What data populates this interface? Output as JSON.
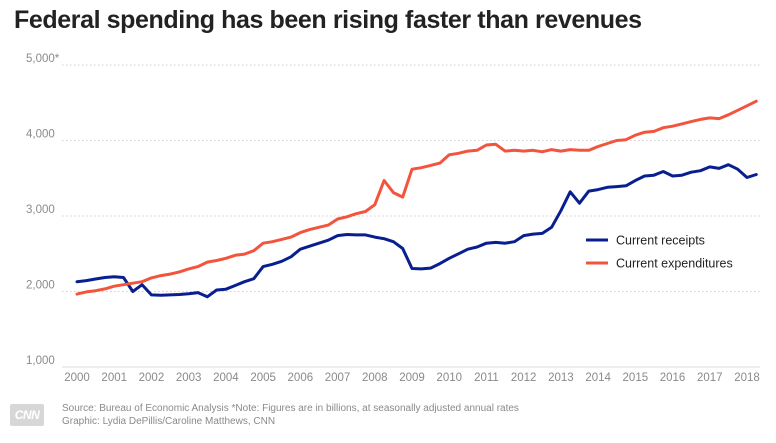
{
  "chart_data": {
    "type": "line",
    "title": "Federal spending has been rising faster than revenues",
    "xlabel": "",
    "ylabel": "",
    "xlim": [
      2000,
      2018.2
    ],
    "ylim": [
      1000,
      5000
    ],
    "x_ticks": [
      "2000",
      "2001",
      "2002",
      "2003",
      "2004",
      "2005",
      "2006",
      "2007",
      "2008",
      "2009",
      "2010",
      "2011",
      "2012",
      "2013",
      "2014",
      "2015",
      "2016",
      "2017",
      "2018"
    ],
    "y_ticks": [
      {
        "value": 1000,
        "label": "1,000"
      },
      {
        "value": 2000,
        "label": "2,000"
      },
      {
        "value": 3000,
        "label": "3,000"
      },
      {
        "value": 4000,
        "label": "4,000"
      },
      {
        "value": 5000,
        "label": "5,000*"
      }
    ],
    "grid": true,
    "legend_position": "right",
    "series": [
      {
        "name": "Current receipts",
        "color": "#0a1f8f",
        "points": [
          [
            2000.0,
            2130
          ],
          [
            2000.25,
            2145
          ],
          [
            2000.5,
            2165
          ],
          [
            2000.75,
            2185
          ],
          [
            2001.0,
            2195
          ],
          [
            2001.25,
            2185
          ],
          [
            2001.5,
            2000
          ],
          [
            2001.75,
            2090
          ],
          [
            2002.0,
            1955
          ],
          [
            2002.25,
            1950
          ],
          [
            2002.5,
            1955
          ],
          [
            2002.75,
            1960
          ],
          [
            2003.0,
            1970
          ],
          [
            2003.25,
            1985
          ],
          [
            2003.5,
            1930
          ],
          [
            2003.75,
            2020
          ],
          [
            2004.0,
            2030
          ],
          [
            2004.25,
            2080
          ],
          [
            2004.5,
            2130
          ],
          [
            2004.75,
            2170
          ],
          [
            2005.0,
            2330
          ],
          [
            2005.25,
            2360
          ],
          [
            2005.5,
            2400
          ],
          [
            2005.75,
            2460
          ],
          [
            2006.0,
            2560
          ],
          [
            2006.25,
            2600
          ],
          [
            2006.5,
            2640
          ],
          [
            2006.75,
            2680
          ],
          [
            2007.0,
            2740
          ],
          [
            2007.25,
            2755
          ],
          [
            2007.5,
            2750
          ],
          [
            2007.75,
            2750
          ],
          [
            2008.0,
            2720
          ],
          [
            2008.25,
            2700
          ],
          [
            2008.5,
            2660
          ],
          [
            2008.75,
            2570
          ],
          [
            2009.0,
            2305
          ],
          [
            2009.25,
            2300
          ],
          [
            2009.5,
            2310
          ],
          [
            2009.75,
            2370
          ],
          [
            2010.0,
            2440
          ],
          [
            2010.25,
            2500
          ],
          [
            2010.5,
            2560
          ],
          [
            2010.75,
            2590
          ],
          [
            2011.0,
            2640
          ],
          [
            2011.25,
            2650
          ],
          [
            2011.5,
            2640
          ],
          [
            2011.75,
            2660
          ],
          [
            2012.0,
            2740
          ],
          [
            2012.25,
            2760
          ],
          [
            2012.5,
            2770
          ],
          [
            2012.75,
            2850
          ],
          [
            2013.0,
            3070
          ],
          [
            2013.25,
            3320
          ],
          [
            2013.5,
            3170
          ],
          [
            2013.75,
            3330
          ],
          [
            2014.0,
            3350
          ],
          [
            2014.25,
            3380
          ],
          [
            2014.5,
            3390
          ],
          [
            2014.75,
            3400
          ],
          [
            2015.0,
            3470
          ],
          [
            2015.25,
            3530
          ],
          [
            2015.5,
            3540
          ],
          [
            2015.75,
            3590
          ],
          [
            2016.0,
            3530
          ],
          [
            2016.25,
            3540
          ],
          [
            2016.5,
            3580
          ],
          [
            2016.75,
            3600
          ],
          [
            2017.0,
            3650
          ],
          [
            2017.25,
            3630
          ],
          [
            2017.5,
            3680
          ],
          [
            2017.75,
            3620
          ],
          [
            2018.0,
            3510
          ],
          [
            2018.25,
            3550
          ]
        ]
      },
      {
        "name": "Current expenditures",
        "color": "#f2543d",
        "points": [
          [
            2000.0,
            1965
          ],
          [
            2000.25,
            1995
          ],
          [
            2000.5,
            2010
          ],
          [
            2000.75,
            2035
          ],
          [
            2001.0,
            2070
          ],
          [
            2001.25,
            2090
          ],
          [
            2001.5,
            2110
          ],
          [
            2001.75,
            2130
          ],
          [
            2002.0,
            2180
          ],
          [
            2002.25,
            2210
          ],
          [
            2002.5,
            2230
          ],
          [
            2002.75,
            2260
          ],
          [
            2003.0,
            2300
          ],
          [
            2003.25,
            2330
          ],
          [
            2003.5,
            2390
          ],
          [
            2003.75,
            2410
          ],
          [
            2004.0,
            2440
          ],
          [
            2004.25,
            2480
          ],
          [
            2004.5,
            2495
          ],
          [
            2004.75,
            2540
          ],
          [
            2005.0,
            2640
          ],
          [
            2005.25,
            2660
          ],
          [
            2005.5,
            2690
          ],
          [
            2005.75,
            2720
          ],
          [
            2006.0,
            2780
          ],
          [
            2006.25,
            2820
          ],
          [
            2006.5,
            2850
          ],
          [
            2006.75,
            2880
          ],
          [
            2007.0,
            2960
          ],
          [
            2007.25,
            2990
          ],
          [
            2007.5,
            3030
          ],
          [
            2007.75,
            3060
          ],
          [
            2008.0,
            3150
          ],
          [
            2008.25,
            3470
          ],
          [
            2008.5,
            3310
          ],
          [
            2008.75,
            3250
          ],
          [
            2009.0,
            3620
          ],
          [
            2009.25,
            3640
          ],
          [
            2009.5,
            3670
          ],
          [
            2009.75,
            3700
          ],
          [
            2010.0,
            3810
          ],
          [
            2010.25,
            3830
          ],
          [
            2010.5,
            3860
          ],
          [
            2010.75,
            3870
          ],
          [
            2011.0,
            3940
          ],
          [
            2011.25,
            3950
          ],
          [
            2011.5,
            3860
          ],
          [
            2011.75,
            3870
          ],
          [
            2012.0,
            3860
          ],
          [
            2012.25,
            3870
          ],
          [
            2012.5,
            3850
          ],
          [
            2012.75,
            3880
          ],
          [
            2013.0,
            3860
          ],
          [
            2013.25,
            3880
          ],
          [
            2013.5,
            3870
          ],
          [
            2013.75,
            3870
          ],
          [
            2014.0,
            3920
          ],
          [
            2014.25,
            3960
          ],
          [
            2014.5,
            4000
          ],
          [
            2014.75,
            4010
          ],
          [
            2015.0,
            4070
          ],
          [
            2015.25,
            4110
          ],
          [
            2015.5,
            4120
          ],
          [
            2015.75,
            4170
          ],
          [
            2016.0,
            4190
          ],
          [
            2016.25,
            4220
          ],
          [
            2016.5,
            4250
          ],
          [
            2016.75,
            4280
          ],
          [
            2017.0,
            4300
          ],
          [
            2017.25,
            4290
          ],
          [
            2017.5,
            4340
          ],
          [
            2017.75,
            4400
          ],
          [
            2018.0,
            4460
          ],
          [
            2018.25,
            4520
          ]
        ]
      }
    ]
  },
  "footer": {
    "source": "Source: Bureau of Economic Analysis *Note: Figures are in billions, at seasonally adjusted annual rates",
    "credit": "Graphic: Lydia DePillis/Caroline Matthews, CNN"
  },
  "logo": {
    "text": "CNN",
    "icon": "cnn-logo"
  }
}
